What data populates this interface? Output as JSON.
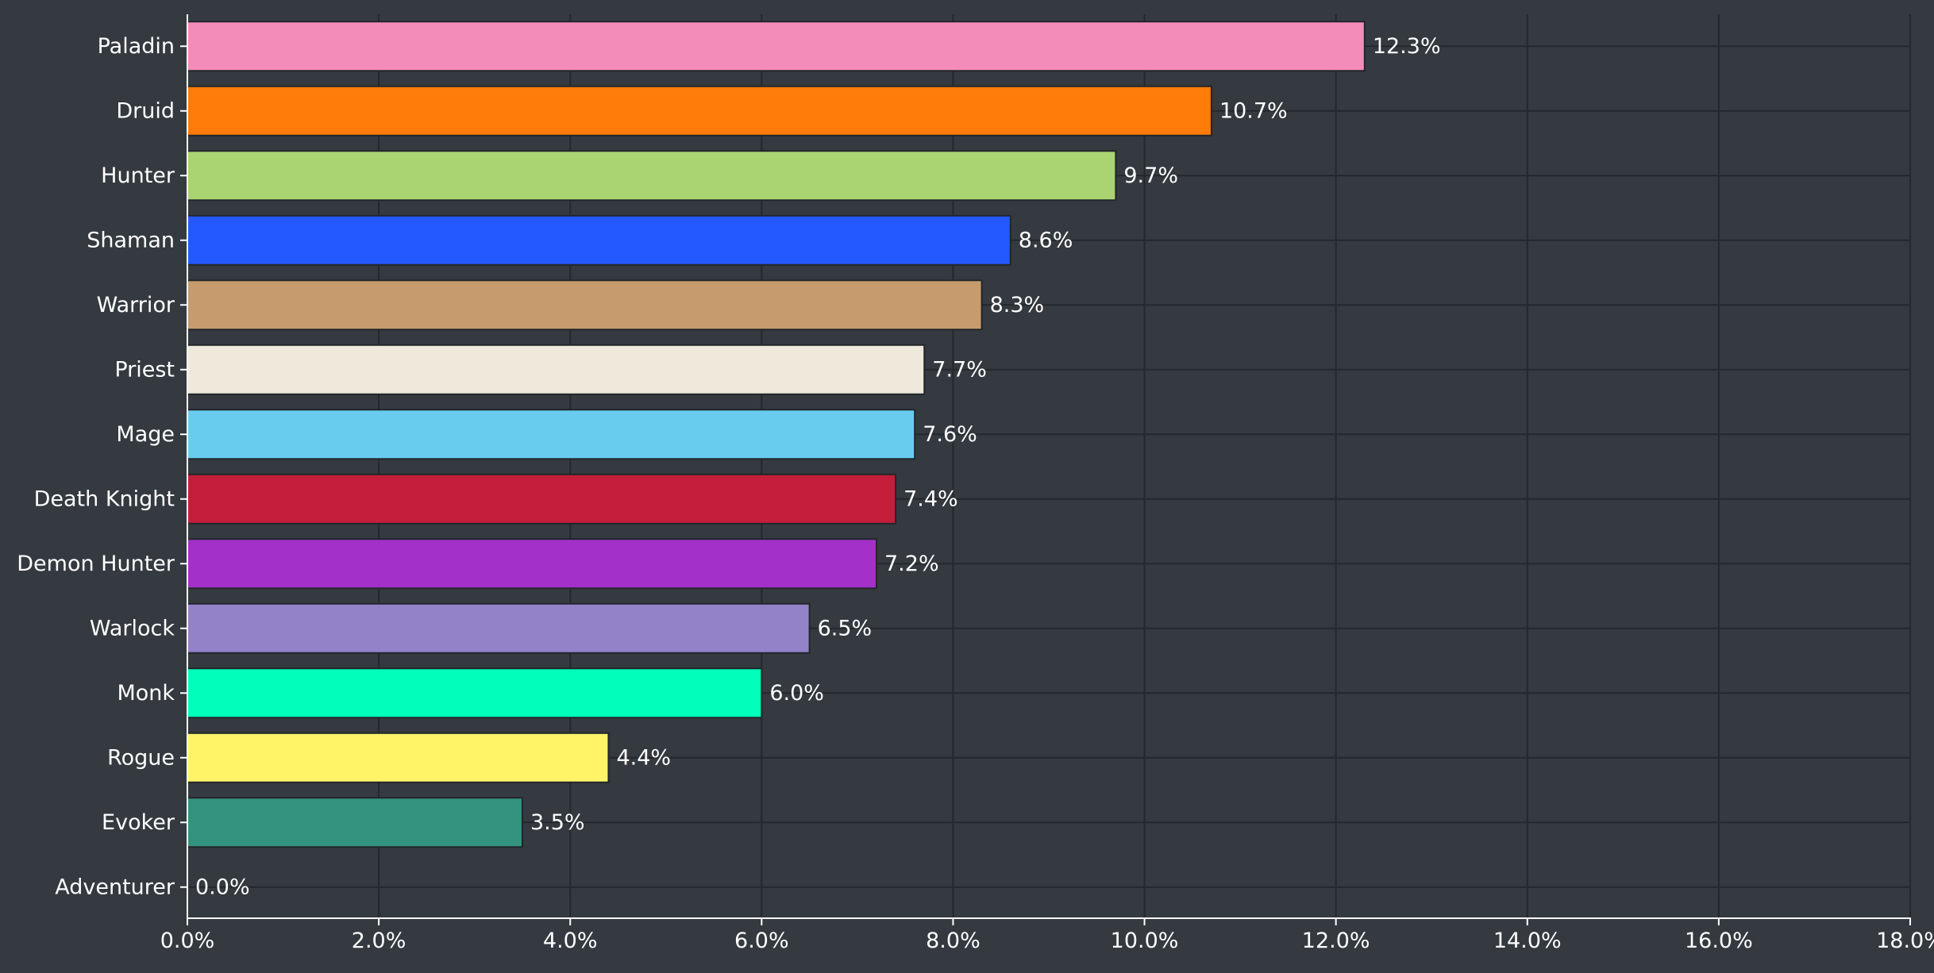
{
  "chart_data": {
    "type": "bar",
    "orientation": "horizontal",
    "title": "",
    "xlabel": "",
    "ylabel": "",
    "xlim": [
      0,
      18
    ],
    "x_ticks": [
      0,
      2,
      4,
      6,
      8,
      10,
      12,
      14,
      16,
      18
    ],
    "x_tick_labels": [
      "0.0%",
      "2.0%",
      "4.0%",
      "6.0%",
      "8.0%",
      "10.0%",
      "12.0%",
      "14.0%",
      "16.0%",
      "18.0%"
    ],
    "grid": true,
    "categories": [
      "Paladin",
      "Druid",
      "Hunter",
      "Shaman",
      "Warrior",
      "Priest",
      "Mage",
      "Death Knight",
      "Demon Hunter",
      "Warlock",
      "Monk",
      "Rogue",
      "Evoker",
      "Adventurer"
    ],
    "values": [
      12.3,
      10.7,
      9.7,
      8.6,
      8.3,
      7.7,
      7.6,
      7.4,
      7.2,
      6.5,
      6.0,
      4.4,
      3.5,
      0.0
    ],
    "value_labels": [
      "12.3%",
      "10.7%",
      "9.7%",
      "8.6%",
      "8.3%",
      "7.7%",
      "7.6%",
      "7.4%",
      "7.2%",
      "6.5%",
      "6.0%",
      "4.4%",
      "3.5%",
      "0.0%"
    ],
    "colors": [
      "#f48cba",
      "#ff7c0a",
      "#aad372",
      "#2459ff",
      "#c69b6d",
      "#efe9dc",
      "#68ccef",
      "#c41e3a",
      "#a330c9",
      "#9482c9",
      "#00ffba",
      "#fff468",
      "#33937f",
      "#cccccc"
    ]
  }
}
